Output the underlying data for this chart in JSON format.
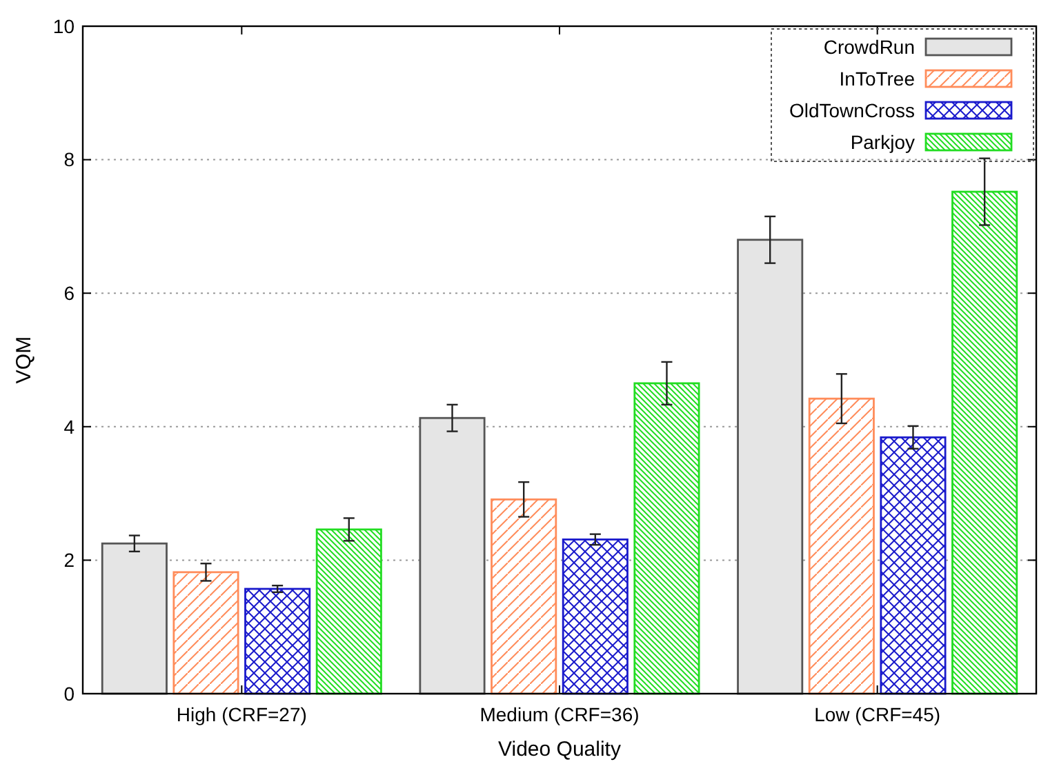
{
  "chart_data": {
    "type": "bar",
    "xlabel": "Video Quality",
    "ylabel": "VQM",
    "categories": [
      "High (CRF=27)",
      "Medium (CRF=36)",
      "Low (CRF=45)"
    ],
    "series": [
      {
        "name": "CrowdRun",
        "color": "#e5e5e5",
        "values": [
          2.25,
          4.13,
          6.8
        ],
        "errors": [
          0.12,
          0.2,
          0.35
        ]
      },
      {
        "name": "InToTree",
        "color": "#ff8c5a",
        "values": [
          1.82,
          2.91,
          4.42
        ],
        "errors": [
          0.13,
          0.26,
          0.37
        ]
      },
      {
        "name": "OldTownCross",
        "color": "#1a1acc",
        "values": [
          1.57,
          2.31,
          3.84
        ],
        "errors": [
          0.05,
          0.08,
          0.17
        ]
      },
      {
        "name": "Parkjoy",
        "color": "#22dd22",
        "values": [
          2.46,
          4.65,
          7.52
        ],
        "errors": [
          0.17,
          0.32,
          0.5
        ]
      }
    ],
    "ylim": [
      0,
      10
    ],
    "yticks": [
      0,
      2,
      4,
      6,
      8,
      10
    ],
    "grid": "y",
    "legend": "top right"
  }
}
